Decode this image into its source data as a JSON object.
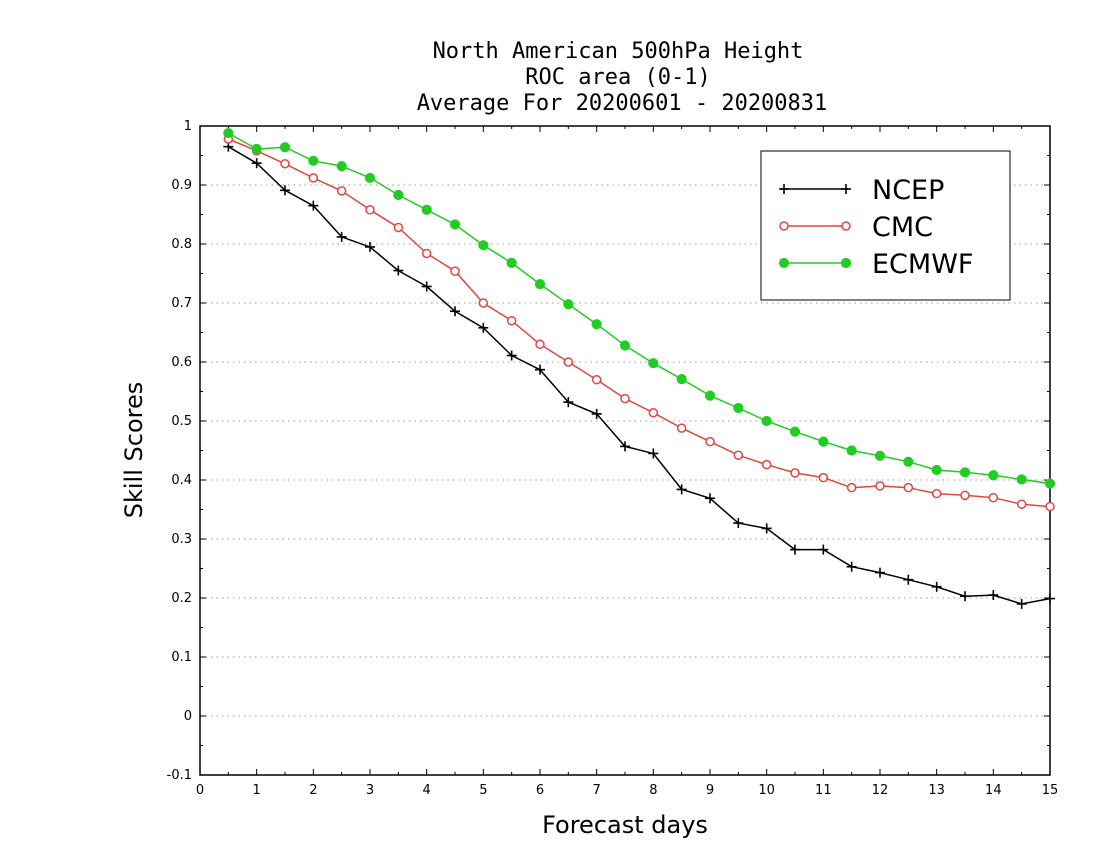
{
  "chart_data": {
    "type": "line",
    "title_lines": [
      "North American 500hPa Height",
      "ROC area (0-1)",
      "Average For 20200601 - 20200831"
    ],
    "xlabel": "Forecast days",
    "ylabel": "Skill Scores",
    "xlim": [
      0,
      15
    ],
    "ylim": [
      -0.1,
      1
    ],
    "xticks": [
      0,
      1,
      2,
      3,
      4,
      5,
      6,
      7,
      8,
      9,
      10,
      11,
      12,
      13,
      14,
      15
    ],
    "yticks": [
      -0.1,
      0,
      0.1,
      0.2,
      0.3,
      0.4,
      0.5,
      0.6,
      0.7,
      0.8,
      0.9,
      1
    ],
    "ytick_labels": [
      "-0.1",
      "0",
      "0.1",
      "0.2",
      "0.3",
      "0.4",
      "0.5",
      "0.6",
      "0.7",
      "0.8",
      "0.9",
      "1"
    ],
    "grid": "horizontal dotted",
    "legend_position": "top-right",
    "x": [
      0.5,
      1,
      1.5,
      2,
      2.5,
      3,
      3.5,
      4,
      4.5,
      5,
      5.5,
      6,
      6.5,
      7,
      7.5,
      8,
      8.5,
      9,
      9.5,
      10,
      10.5,
      11,
      11.5,
      12,
      12.5,
      13,
      13.5,
      14,
      14.5,
      15
    ],
    "series": [
      {
        "name": "NCEP",
        "color": "#000000",
        "marker": "plus",
        "values": [
          0.965,
          0.937,
          0.891,
          0.865,
          0.812,
          0.795,
          0.755,
          0.728,
          0.686,
          0.658,
          0.611,
          0.587,
          0.532,
          0.512,
          0.457,
          0.445,
          0.384,
          0.369,
          0.327,
          0.318,
          0.282,
          0.282,
          0.253,
          0.243,
          0.231,
          0.219,
          0.203,
          0.205,
          0.19,
          0.199
        ]
      },
      {
        "name": "CMC",
        "color": "#e0473f",
        "marker": "open-circle",
        "values": [
          0.978,
          0.958,
          0.936,
          0.912,
          0.89,
          0.858,
          0.828,
          0.784,
          0.754,
          0.7,
          0.67,
          0.63,
          0.6,
          0.57,
          0.538,
          0.514,
          0.488,
          0.465,
          0.442,
          0.426,
          0.412,
          0.404,
          0.387,
          0.39,
          0.387,
          0.377,
          0.374,
          0.37,
          0.359,
          0.355
        ]
      },
      {
        "name": "ECMWF",
        "color": "#22cc22",
        "marker": "filled-circle",
        "values": [
          0.988,
          0.961,
          0.964,
          0.941,
          0.932,
          0.912,
          0.883,
          0.858,
          0.833,
          0.798,
          0.768,
          0.732,
          0.698,
          0.664,
          0.628,
          0.598,
          0.571,
          0.543,
          0.522,
          0.5,
          0.482,
          0.465,
          0.45,
          0.441,
          0.431,
          0.417,
          0.413,
          0.408,
          0.401,
          0.394
        ]
      }
    ]
  }
}
